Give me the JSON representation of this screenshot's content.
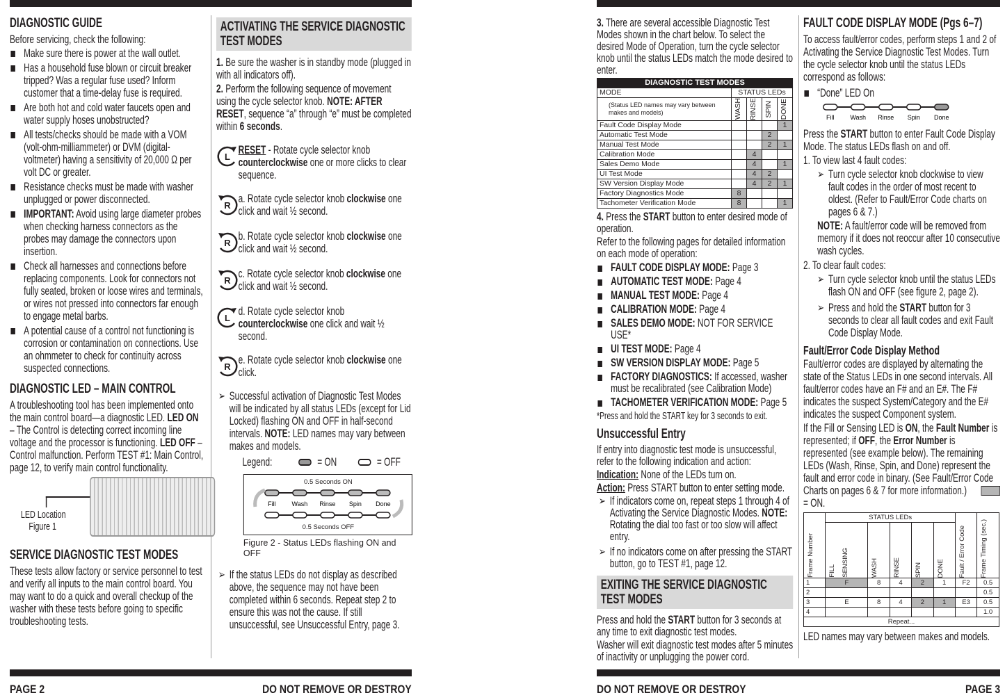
{
  "footer": {
    "page_left": "PAGE 2",
    "notice_left": "DO NOT REMOVE OR DESTROY",
    "notice_right": "DO NOT REMOVE OR DESTROY",
    "page_right": "PAGE 3"
  },
  "p2c1": {
    "title": "DIAGNOSTIC GUIDE",
    "intro": "Before servicing, check the following:",
    "bullets": [
      [
        {
          "t": "Make sure there is power at the wall outlet."
        }
      ],
      [
        {
          "t": "Has a household fuse blown or circuit breaker tripped? Was a regular fuse used? Inform customer that a time-delay fuse is required."
        }
      ],
      [
        {
          "t": "Are both hot and cold water faucets open and water supply hoses unobstructed?"
        }
      ],
      [
        {
          "t": "All tests/checks should be made with a VOM (volt-ohm-milliammeter) or DVM (digital-voltmeter) having a sensitivity of 20,000 Ω per volt DC or greater."
        }
      ],
      [
        {
          "t": "Resistance checks must be made with washer unplugged or power disconnected."
        }
      ],
      [
        {
          "t": "IMPORTANT:",
          "b": true
        },
        {
          "t": " Avoid using large diameter probes when checking harness connectors as the probes may damage the connectors upon insertion."
        }
      ],
      [
        {
          "t": "Check all harnesses and connections before replacing components. Look for connectors not fully seated, broken or loose wires and terminals, or wires not pressed into connectors far enough to engage metal barbs."
        }
      ],
      [
        {
          "t": "A potential cause of a control not functioning is corrosion or contamination on connections. Use an ohmmeter to check for continuity across suspected connections."
        }
      ]
    ],
    "led_title": "DIAGNOSTIC LED – MAIN CONTROL",
    "led_text": [
      {
        "t": "A troubleshooting tool has been implemented onto the main control board—a diagnostic LED. "
      },
      {
        "t": "LED ON",
        "b": true
      },
      {
        "t": " – The Control is detecting correct incoming line voltage and the processor is functioning. "
      },
      {
        "t": "LED OFF",
        "b": true
      },
      {
        "t": " – Control malfunction. Perform TEST #1: Main Control, page 12, to verify main control functionality."
      }
    ],
    "fig1_label": "LED Location",
    "fig1_caption": "Figure 1",
    "sdtm_title": "SERVICE DIAGNOSTIC TEST MODES",
    "sdtm_text": "These tests allow factory or service personnel to test and verify all inputs to the main control board. You may want to do a quick and overall checkup of the washer with these tests before going to specific troubleshooting tests."
  },
  "p2c2": {
    "title": "ACTIVATING THE SERVICE DIAGNOSTIC TEST MODES",
    "step1": [
      {
        "t": "1.",
        "b": true
      },
      {
        "t": " Be sure the washer is in standby mode (plugged in with all indicators off)."
      }
    ],
    "step2": [
      {
        "t": "2.",
        "b": true
      },
      {
        "t": " Perform the following sequence of movement using the cycle selector knob. "
      },
      {
        "t": "NOTE: AFTER RESET",
        "b": true
      },
      {
        "t": ", sequence “a” through “e” must be completed within "
      },
      {
        "t": "6 seconds",
        "b": true
      },
      {
        "t": "."
      }
    ],
    "steps": [
      {
        "icon": "counterclockwise-knob-icon",
        "letter": "L",
        "text": [
          {
            "t": "RESET",
            "u": true
          },
          {
            "t": " - Rotate cycle selector knob "
          },
          {
            "t": "counterclockwise",
            "b": true
          },
          {
            "t": " one or more clicks to clear sequence."
          }
        ]
      },
      {
        "icon": "clockwise-knob-icon",
        "letter": "R",
        "text": [
          {
            "t": "a.   Rotate cycle selector knob "
          },
          {
            "t": "clockwise",
            "b": true
          },
          {
            "t": " one click and wait ½ second."
          }
        ]
      },
      {
        "icon": "clockwise-knob-icon",
        "letter": "R",
        "text": [
          {
            "t": "b.   Rotate cycle selector knob "
          },
          {
            "t": "clockwise",
            "b": true
          },
          {
            "t": " one click and wait ½ second."
          }
        ]
      },
      {
        "icon": "clockwise-knob-icon",
        "letter": "R",
        "text": [
          {
            "t": "c.   Rotate cycle selector knob "
          },
          {
            "t": "clockwise",
            "b": true
          },
          {
            "t": " one click and wait ½ second."
          }
        ]
      },
      {
        "icon": "counterclockwise-knob-icon",
        "letter": "L",
        "text": [
          {
            "t": "d.   Rotate cycle selector knob "
          },
          {
            "t": "counterclockwise",
            "b": true
          },
          {
            "t": " one click and wait ½ second."
          }
        ]
      },
      {
        "icon": "clockwise-knob-icon",
        "letter": "R",
        "text": [
          {
            "t": "e.   Rotate cycle selector knob "
          },
          {
            "t": "clockwise",
            "b": true
          },
          {
            "t": " one click."
          }
        ]
      }
    ],
    "success": [
      {
        "t": "Successful activation of Diagnostic Test Modes will be indicated by all status LEDs (except for Lid Locked) flashing ON and OFF in half-second intervals. "
      },
      {
        "t": "NOTE:",
        "b": true
      },
      {
        "t": " LED names may vary between makes and models."
      }
    ],
    "legend_label": "Legend:",
    "legend_on": "= ON",
    "legend_off": "= OFF",
    "fig2_top": "0.5 Seconds ON",
    "fig2_bottom": "0.5 Seconds OFF",
    "fig2_leds": [
      "Fill",
      "Wash",
      "Rinse",
      "Spin",
      "Done"
    ],
    "fig2_caption": "Figure 2 - Status LEDs flashing ON and OFF",
    "fail_note": "If the status LEDs do not display as described above, the sequence may not have been completed within 6 seconds. Repeat step 2 to ensure this was not the cause. If still unsuccessful, see Unsuccessful Entry, page 3."
  },
  "p3c1": {
    "step3": [
      {
        "t": "3.",
        "b": true
      },
      {
        "t": " There are several accessible Diagnostic Test Modes shown in the chart below. To select the desired Mode of Operation, turn the cycle selector knob until the status LEDs match the mode desired to enter."
      }
    ],
    "table": {
      "title": "DIAGNOSTIC TEST MODES",
      "mode_header": "MODE",
      "leds_header": "STATUS LEDs",
      "note": "(Status LED names may vary between makes and models)",
      "columns": [
        "WASH",
        "RINSE",
        "SPIN",
        "DONE"
      ],
      "rows": [
        {
          "mode": "Fault Code Display Mode",
          "v": [
            "",
            "",
            "",
            "1"
          ]
        },
        {
          "mode": "Automatic Test Mode",
          "v": [
            "",
            "",
            "2",
            ""
          ]
        },
        {
          "mode": "Manual Test Mode",
          "v": [
            "",
            "",
            "2",
            "1"
          ]
        },
        {
          "mode": "Calibration Mode",
          "v": [
            "",
            "4",
            "",
            ""
          ]
        },
        {
          "mode": "Sales Demo Mode",
          "v": [
            "",
            "4",
            "",
            "1"
          ]
        },
        {
          "mode": "UI Test Mode",
          "v": [
            "",
            "4",
            "2",
            ""
          ]
        },
        {
          "mode": "SW Version Display Mode",
          "v": [
            "",
            "4",
            "2",
            "1"
          ]
        },
        {
          "mode": "Factory Diagnostics Mode",
          "v": [
            "8",
            "",
            "",
            ""
          ]
        },
        {
          "mode": "Tachometer Verification Mode",
          "v": [
            "8",
            "",
            "",
            "1"
          ]
        }
      ]
    },
    "step4": [
      {
        "t": "4.",
        "b": true
      },
      {
        "t": " Press the "
      },
      {
        "t": "START",
        "b": true
      },
      {
        "t": " button to enter desired mode of operation."
      }
    ],
    "refer": "Refer to the following pages for detailed information on each mode of operation:",
    "modes": [
      [
        {
          "t": "FAULT CODE DISPLAY MODE:",
          "b": true
        },
        {
          "t": " Page 3"
        }
      ],
      [
        {
          "t": "AUTOMATIC TEST MODE:",
          "b": true
        },
        {
          "t": " Page 4"
        }
      ],
      [
        {
          "t": "MANUAL TEST MODE:",
          "b": true
        },
        {
          "t": " Page 4"
        }
      ],
      [
        {
          "t": "CALIBRATION MODE:",
          "b": true
        },
        {
          "t": " Page 4"
        }
      ],
      [
        {
          "t": "SALES DEMO MODE:",
          "b": true
        },
        {
          "t": " NOT FOR SERVICE USE*"
        }
      ],
      [
        {
          "t": "UI TEST MODE:",
          "b": true
        },
        {
          "t": " Page 4"
        }
      ],
      [
        {
          "t": "SW VERSION DISPLAY MODE:",
          "b": true
        },
        {
          "t": " Page 5"
        }
      ],
      [
        {
          "t": "FACTORY DIAGNOSTICS:",
          "b": true
        },
        {
          "t": " If accessed, washer must be recalibrated (see Calibration Mode)"
        }
      ],
      [
        {
          "t": "TACHOMETER VERIFICATION MODE:",
          "b": true
        },
        {
          "t": " Page 5"
        }
      ]
    ],
    "footnote": "*Press and hold the START key for 3 seconds to exit.",
    "unsucc_title": "Unsuccessful Entry",
    "unsucc_text": "If entry into diagnostic test mode is unsuccessful, refer to the following indication and action:",
    "indication": [
      {
        "t": "Indication:",
        "u": true
      },
      {
        "t": " None of the LEDs turn on."
      }
    ],
    "action": [
      {
        "t": "Action:",
        "u": true
      },
      {
        "t": " Press START button to enter setting mode."
      }
    ],
    "action_notes": [
      [
        {
          "t": "If indicators come on, repeat steps 1 through 4 of Activating the Service Diagnostic Modes. "
        },
        {
          "t": "NOTE:",
          "b": true
        },
        {
          "t": " Rotating the dial too fast or too slow will affect entry."
        }
      ],
      [
        {
          "t": "If no indicators come on after pressing the START button, go to TEST #1, page 12."
        }
      ]
    ],
    "exit_title": "EXITING THE SERVICE DIAGNOSTIC TEST MODES",
    "exit_text": [
      {
        "t": "Press and hold the "
      },
      {
        "t": "START",
        "b": true
      },
      {
        "t": " button for 3 seconds at any time to exit diagnostic test modes."
      }
    ],
    "exit_text2": "Washer will exit diagnostic test modes after 5 minutes of inactivity or unplugging the power cord."
  },
  "p3c2": {
    "title": "FAULT CODE DISPLAY MODE (Pgs 6–7)",
    "intro": "To access fault/error codes, perform steps 1 and 2 of Activating the Service Diagnostic Test Modes. Turn the cycle selector knob until the status LEDs correspond as follows:",
    "done_on": "“Done” LED On",
    "leds": [
      "Fill",
      "Wash",
      "Rinse",
      "Spin",
      "Done"
    ],
    "press": [
      {
        "t": "Press the "
      },
      {
        "t": "START",
        "b": true
      },
      {
        "t": " button to enter Fault Code Display Mode. The status LEDs flash on and off."
      }
    ],
    "view_title": "1.  To view last 4 fault codes:",
    "view_sub": "Turn cycle selector knob clockwise to view fault codes in the order of most recent to oldest. (Refer to Fault/Error Code charts on pages 6 & 7.)",
    "view_note": [
      {
        "t": "NOTE:",
        "b": true
      },
      {
        "t": " A fault/error code will be removed from memory if it does not reoccur after 10 consecutive wash cycles."
      }
    ],
    "clear_title": "2.  To clear fault codes:",
    "clear_sub1": "Turn cycle selector knob until the status LEDs flash ON and OFF (see figure 2, page 2).",
    "clear_sub2": [
      {
        "t": "Press and hold the "
      },
      {
        "t": "START",
        "b": true
      },
      {
        "t": " button for 3 seconds to clear all fault codes and exit Fault Code Display Mode."
      }
    ],
    "method_title": "Fault/Error Code Display Method",
    "method_text": "Fault/error codes are displayed by alternating the state of the Status LEDs in one second intervals. All fault/error codes have an F# and an E#. The F# indicates the suspect System/Category and the E# indicates the suspect Component system.",
    "method_text2": [
      {
        "t": "If the Fill or Sensing LED is "
      },
      {
        "t": "ON",
        "b": true
      },
      {
        "t": ", the "
      },
      {
        "t": "Fault Number",
        "b": true
      },
      {
        "t": " is represented; if "
      },
      {
        "t": "OFF",
        "b": true
      },
      {
        "t": ", the "
      },
      {
        "t": "Error Number",
        "b": true
      },
      {
        "t": " is represented (see example below). The remaining LEDs (Wash, Rinse, Spin, and Done) represent the fault and error code in binary. (See Fault/Error Code Charts on pages 6 & 7 for more information.)"
      }
    ],
    "on_legend": "= ON.",
    "table": {
      "frame_header": "Frame Number",
      "leds_header": "STATUS LEDs",
      "fill": "FILL",
      "sensing": "SENSING",
      "cols": [
        "WASH",
        "RINSE",
        "SPIN",
        "DONE"
      ],
      "code_header": "Fault / Error Code",
      "timing_header": "Frame Timing (sec.)",
      "rows": [
        {
          "n": "1",
          "v": [
            "F",
            "8",
            "4",
            "2",
            "1"
          ],
          "on": [
            true,
            false,
            false,
            true,
            false
          ],
          "code": "F2",
          "t": "0.5"
        },
        {
          "n": "2",
          "v": [
            "",
            "",
            "",
            "",
            ""
          ],
          "on": [
            false,
            false,
            false,
            false,
            false
          ],
          "code": "",
          "t": "0.5"
        },
        {
          "n": "3",
          "v": [
            "E",
            "8",
            "4",
            "2",
            "1"
          ],
          "on": [
            false,
            false,
            false,
            true,
            true
          ],
          "code": "E3",
          "t": "0.5"
        },
        {
          "n": "4",
          "v": [
            "",
            "",
            "",
            "",
            ""
          ],
          "on": [
            false,
            false,
            false,
            false,
            false
          ],
          "code": "",
          "t": "1.0"
        }
      ],
      "repeat": "Repeat..."
    },
    "closing": "LED names may vary between makes and models."
  }
}
